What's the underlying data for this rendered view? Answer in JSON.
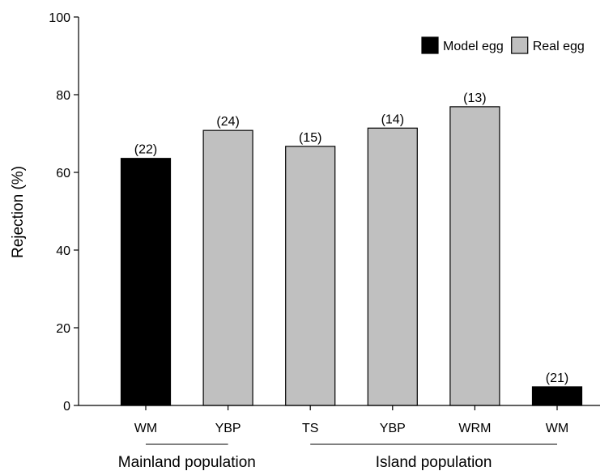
{
  "chart_data": {
    "type": "bar",
    "ylabel": "Rejection (%)",
    "xlabel": "",
    "ylim": [
      0,
      100
    ],
    "yticks": [
      0,
      20,
      40,
      60,
      80,
      100
    ],
    "categories": [
      "WM",
      "YBP",
      "TS",
      "YBP",
      "WRM",
      "WM"
    ],
    "values": [
      63.6,
      70.8,
      66.7,
      71.4,
      76.9,
      4.8
    ],
    "sample_sizes": [
      "(22)",
      "(24)",
      "(15)",
      "(14)",
      "(13)",
      "(21)"
    ],
    "egg_type": [
      "Model egg",
      "Real egg",
      "Real egg",
      "Real egg",
      "Real egg",
      "Model egg"
    ],
    "legend": {
      "placement": "top-right",
      "entries": [
        {
          "name": "Model egg",
          "color": "#000000"
        },
        {
          "name": "Real egg",
          "color": "#c0c0c0"
        }
      ]
    },
    "groups": [
      {
        "label": "Mainland population",
        "from": 0,
        "to": 1
      },
      {
        "label": "Island population",
        "from": 2,
        "to": 5
      }
    ],
    "grid": false
  }
}
